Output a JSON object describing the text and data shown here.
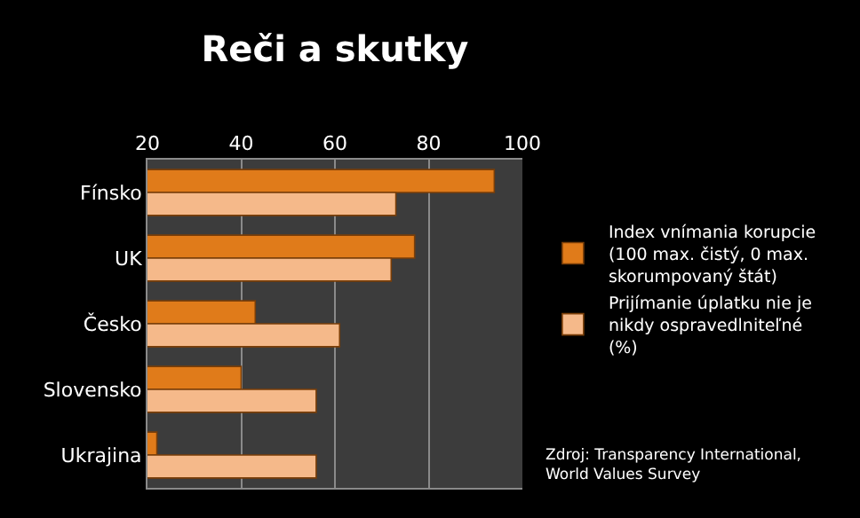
{
  "chart_data": {
    "type": "bar",
    "orientation": "horizontal",
    "title": "Reči a skutky",
    "categories": [
      "Fínsko",
      "UK",
      "Česko",
      "Slovensko",
      "Ukrajina"
    ],
    "series": [
      {
        "name": "Index vnímania korupcie (100 max. čistý, 0 max. skorumpovaný štát)",
        "color": "#e07b1a",
        "values": [
          94,
          77,
          43,
          40,
          22
        ]
      },
      {
        "name": "Prijímanie úplatku nie je nikdy ospravedlniteľné (%)",
        "color": "#f5b98a",
        "values": [
          73,
          72,
          61,
          56,
          56
        ]
      }
    ],
    "xlim": [
      20,
      100
    ],
    "xticks": [
      20,
      40,
      60,
      80,
      100
    ],
    "grid": "x",
    "legend": "right",
    "annotations": [
      "Zdroj: Transparency International, World Values Survey"
    ]
  }
}
